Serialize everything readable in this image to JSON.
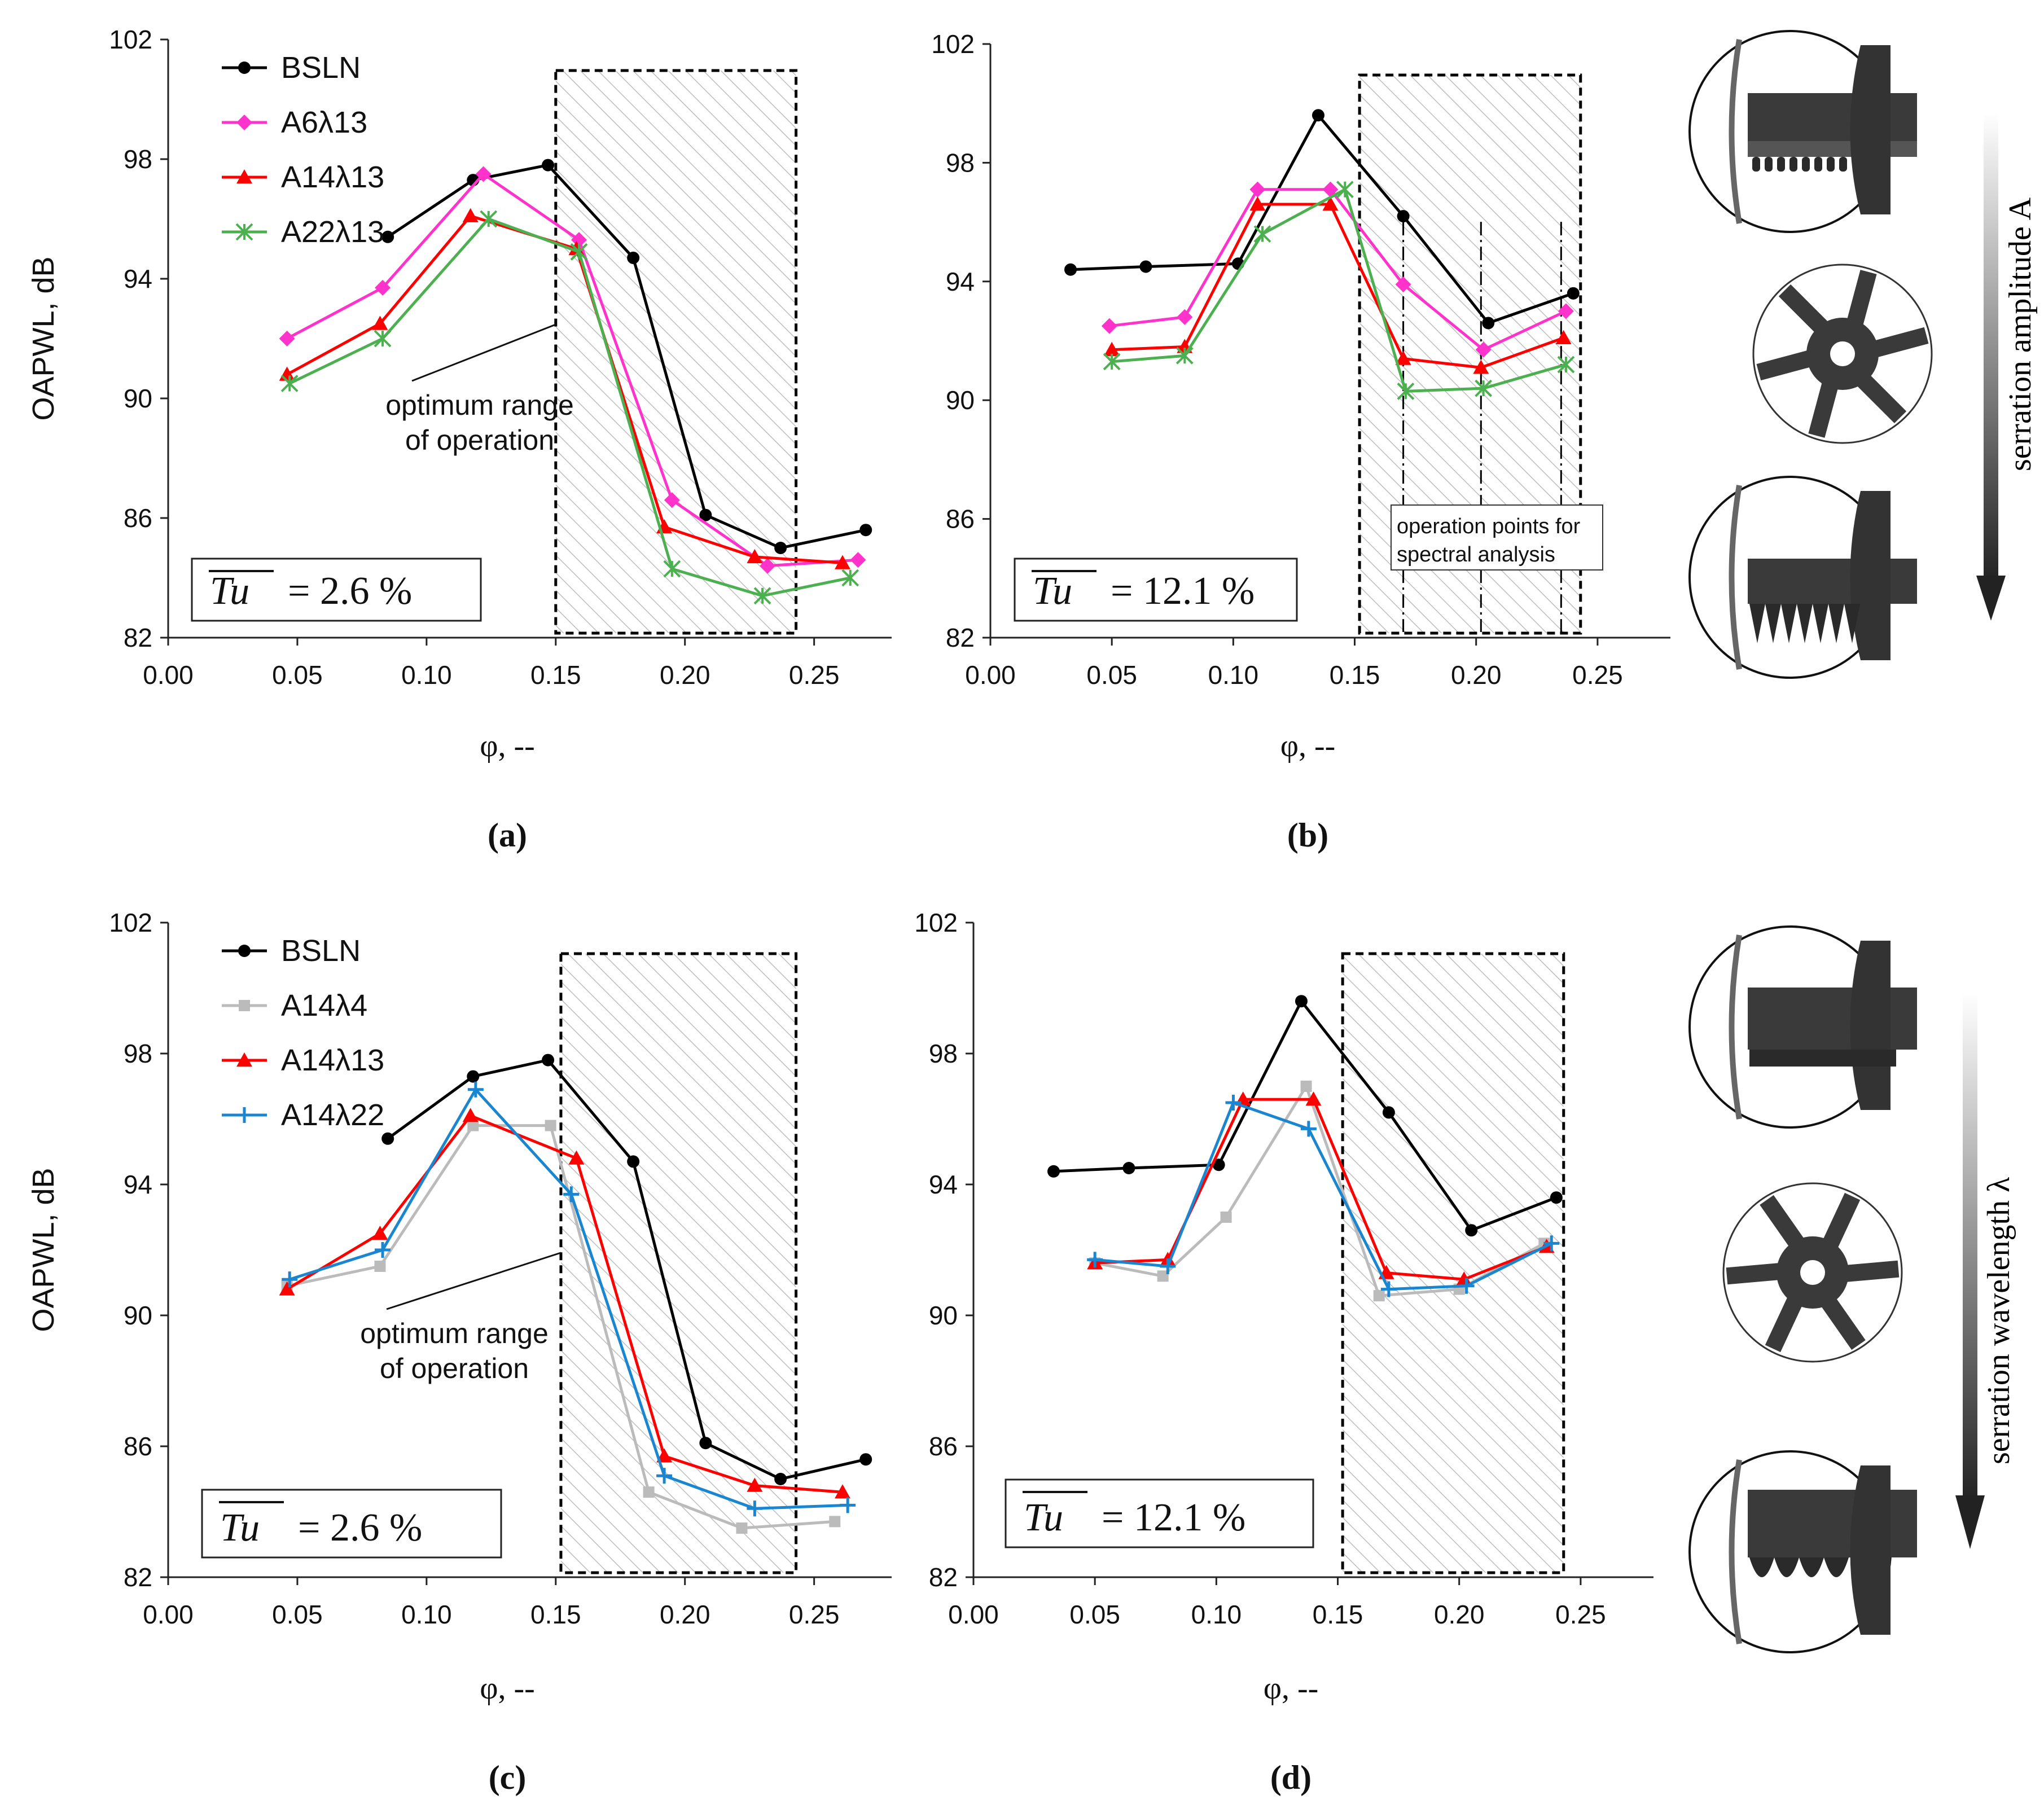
{
  "colors": {
    "bsln": "#000000",
    "a6": "#ff33cc",
    "a14": "#ff0000",
    "a22": "#4caf50",
    "a14l4": "#bbbbbb",
    "a14l22": "#1a86d0",
    "hatch": "#bdbdbd"
  },
  "chart_data": [
    {
      "id": "a",
      "type": "line",
      "panel_label": "(a)",
      "ylabel": "OAPWL, dB",
      "xlabel": "φ, --",
      "xlim": [
        0,
        0.28
      ],
      "ylim": [
        82,
        102
      ],
      "xticks": [
        "0.00",
        "0.05",
        "0.10",
        "0.15",
        "0.20",
        "0.25"
      ],
      "yticks": [
        "82",
        "86",
        "90",
        "94",
        "98",
        "102"
      ],
      "tu_label": "= 2.6 %",
      "annotation": [
        "optimum range",
        "of operation"
      ],
      "shaded_range": [
        0.15,
        0.243
      ],
      "series": [
        {
          "name": "BSLN",
          "color_key": "bsln",
          "marker": "circle",
          "x": [
            0.085,
            0.118,
            0.147,
            0.18,
            0.208,
            0.237,
            0.27
          ],
          "y": [
            95.4,
            97.3,
            97.8,
            94.7,
            86.1,
            85.0,
            85.6
          ]
        },
        {
          "name": "A6λ13",
          "color_key": "a6",
          "marker": "diamond",
          "x": [
            0.046,
            0.083,
            0.122,
            0.159,
            0.195,
            0.232,
            0.267
          ],
          "y": [
            92.0,
            93.7,
            97.5,
            95.3,
            86.6,
            84.4,
            84.6
          ]
        },
        {
          "name": "A14λ13",
          "color_key": "a14",
          "marker": "triangle",
          "x": [
            0.046,
            0.082,
            0.117,
            0.158,
            0.192,
            0.227,
            0.261
          ],
          "y": [
            90.8,
            92.5,
            96.1,
            95.0,
            85.7,
            84.7,
            84.5
          ]
        },
        {
          "name": "A22λ13",
          "color_key": "a22",
          "marker": "asterisk",
          "x": [
            0.047,
            0.083,
            0.124,
            0.159,
            0.195,
            0.23,
            0.264
          ],
          "y": [
            90.5,
            92.0,
            96.0,
            94.9,
            84.3,
            83.4,
            84.0
          ]
        }
      ]
    },
    {
      "id": "b",
      "type": "line",
      "panel_label": "(b)",
      "ylabel": "",
      "xlabel": "φ, --",
      "xlim": [
        0,
        0.28
      ],
      "ylim": [
        82,
        102
      ],
      "xticks": [
        "0.00",
        "0.05",
        "0.10",
        "0.15",
        "0.20",
        "0.25"
      ],
      "yticks": [
        "82",
        "86",
        "90",
        "94",
        "98",
        "102"
      ],
      "tu_label": "= 12.1 %",
      "annotation": [
        "operation points for",
        "spectral analysis"
      ],
      "shaded_range": [
        0.152,
        0.243
      ],
      "op_points": [
        0.17,
        0.202,
        0.235
      ],
      "series": [
        {
          "name": "BSLN",
          "color_key": "bsln",
          "marker": "circle",
          "x": [
            0.033,
            0.064,
            0.102,
            0.135,
            0.17,
            0.205,
            0.24
          ],
          "y": [
            94.4,
            94.5,
            94.6,
            99.6,
            96.2,
            92.6,
            93.6
          ]
        },
        {
          "name": "A6λ13",
          "color_key": "a6",
          "marker": "diamond",
          "x": [
            0.049,
            0.08,
            0.11,
            0.14,
            0.17,
            0.203,
            0.237
          ],
          "y": [
            92.5,
            92.8,
            97.1,
            97.1,
            93.9,
            91.7,
            93.0
          ]
        },
        {
          "name": "A14λ13",
          "color_key": "a14",
          "marker": "triangle",
          "x": [
            0.05,
            0.08,
            0.11,
            0.14,
            0.17,
            0.202,
            0.236
          ],
          "y": [
            91.7,
            91.8,
            96.6,
            96.6,
            91.4,
            91.1,
            92.1
          ]
        },
        {
          "name": "A22λ13",
          "color_key": "a22",
          "marker": "asterisk",
          "x": [
            0.05,
            0.08,
            0.112,
            0.146,
            0.171,
            0.203,
            0.237
          ],
          "y": [
            91.3,
            91.5,
            95.6,
            97.1,
            90.3,
            90.4,
            91.2
          ]
        }
      ]
    },
    {
      "id": "c",
      "type": "line",
      "panel_label": "(c)",
      "ylabel": "OAPWL, dB",
      "xlabel": "φ, --",
      "xlim": [
        0,
        0.28
      ],
      "ylim": [
        82,
        102
      ],
      "xticks": [
        "0.00",
        "0.05",
        "0.10",
        "0.15",
        "0.20",
        "0.25"
      ],
      "yticks": [
        "82",
        "86",
        "90",
        "94",
        "98",
        "102"
      ],
      "tu_label": "= 2.6 %",
      "annotation": [
        "optimum range",
        "of operation"
      ],
      "shaded_range": [
        0.152,
        0.243
      ],
      "series": [
        {
          "name": "BSLN",
          "color_key": "bsln",
          "marker": "circle",
          "x": [
            0.085,
            0.118,
            0.147,
            0.18,
            0.208,
            0.237,
            0.27
          ],
          "y": [
            95.4,
            97.3,
            97.8,
            94.7,
            86.1,
            85.0,
            85.6
          ]
        },
        {
          "name": "A14λ4",
          "color_key": "a14l4",
          "marker": "square",
          "x": [
            0.046,
            0.082,
            0.118,
            0.148,
            0.186,
            0.222,
            0.258
          ],
          "y": [
            90.9,
            91.5,
            95.8,
            95.8,
            84.6,
            83.5,
            83.7
          ]
        },
        {
          "name": "A14λ13",
          "color_key": "a14",
          "marker": "triangle",
          "x": [
            0.046,
            0.082,
            0.117,
            0.158,
            0.192,
            0.227,
            0.261
          ],
          "y": [
            90.8,
            92.5,
            96.1,
            94.8,
            85.7,
            84.8,
            84.6
          ]
        },
        {
          "name": "A14λ22",
          "color_key": "a14l22",
          "marker": "plus",
          "x": [
            0.047,
            0.083,
            0.119,
            0.156,
            0.192,
            0.227,
            0.263
          ],
          "y": [
            91.1,
            92.0,
            96.9,
            93.7,
            85.1,
            84.1,
            84.2
          ]
        }
      ]
    },
    {
      "id": "d",
      "type": "line",
      "panel_label": "(d)",
      "ylabel": "",
      "xlabel": "φ, --",
      "xlim": [
        0,
        0.28
      ],
      "ylim": [
        82,
        102
      ],
      "xticks": [
        "0.00",
        "0.05",
        "0.10",
        "0.15",
        "0.20",
        "0.25"
      ],
      "yticks": [
        "82",
        "86",
        "90",
        "94",
        "98",
        "102"
      ],
      "tu_label": "= 12.1 %",
      "annotation": [],
      "shaded_range": [
        0.152,
        0.243
      ],
      "series": [
        {
          "name": "BSLN",
          "color_key": "bsln",
          "marker": "circle",
          "x": [
            0.033,
            0.064,
            0.101,
            0.135,
            0.171,
            0.205,
            0.24
          ],
          "y": [
            94.4,
            94.5,
            94.6,
            99.6,
            96.2,
            92.6,
            93.6
          ]
        },
        {
          "name": "A14λ4",
          "color_key": "a14l4",
          "marker": "square",
          "x": [
            0.05,
            0.078,
            0.104,
            0.137,
            0.167,
            0.2,
            0.235
          ],
          "y": [
            91.6,
            91.2,
            93.0,
            97.0,
            90.6,
            90.8,
            92.2
          ]
        },
        {
          "name": "A14λ13",
          "color_key": "a14",
          "marker": "triangle",
          "x": [
            0.05,
            0.08,
            0.111,
            0.14,
            0.17,
            0.202,
            0.236
          ],
          "y": [
            91.6,
            91.7,
            96.6,
            96.6,
            91.3,
            91.1,
            92.1
          ]
        },
        {
          "name": "A14λ22",
          "color_key": "a14l22",
          "marker": "plus",
          "x": [
            0.05,
            0.08,
            0.107,
            0.138,
            0.171,
            0.203,
            0.238
          ],
          "y": [
            91.7,
            91.5,
            96.5,
            95.7,
            90.8,
            90.9,
            92.2
          ]
        }
      ]
    }
  ],
  "side_labels": {
    "top": "serration amplitude A",
    "bottom": "serration wavelength λ"
  },
  "tu_symbol": "Tu"
}
